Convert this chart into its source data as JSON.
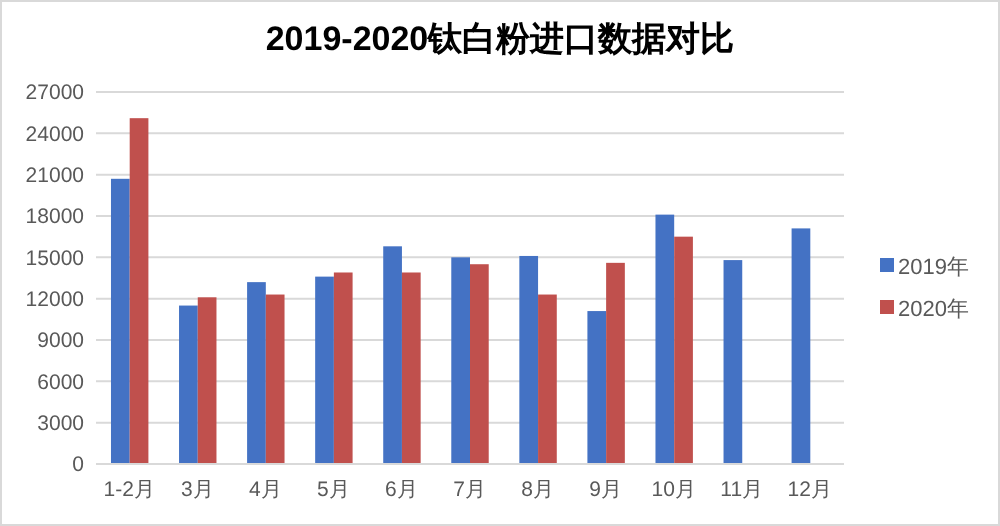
{
  "chart_data": {
    "type": "bar",
    "title": "2019-2020钛白粉进口数据对比",
    "categories": [
      "1-2月",
      "3月",
      "4月",
      "5月",
      "6月",
      "7月",
      "8月",
      "9月",
      "10月",
      "11月",
      "12月"
    ],
    "series": [
      {
        "name": "2019年",
        "color": "#4472c4",
        "values": [
          20700,
          11500,
          13200,
          13600,
          15800,
          15000,
          15100,
          11100,
          18100,
          14800,
          17100
        ]
      },
      {
        "name": "2020年",
        "color": "#c0504d",
        "values": [
          25100,
          12100,
          12300,
          13900,
          13900,
          14500,
          12300,
          14600,
          16500,
          null,
          null
        ]
      }
    ],
    "ylim": [
      0,
      27000
    ],
    "yticks": [
      0,
      3000,
      6000,
      9000,
      12000,
      15000,
      18000,
      21000,
      24000,
      27000
    ],
    "grid": "y",
    "legend": "right"
  }
}
